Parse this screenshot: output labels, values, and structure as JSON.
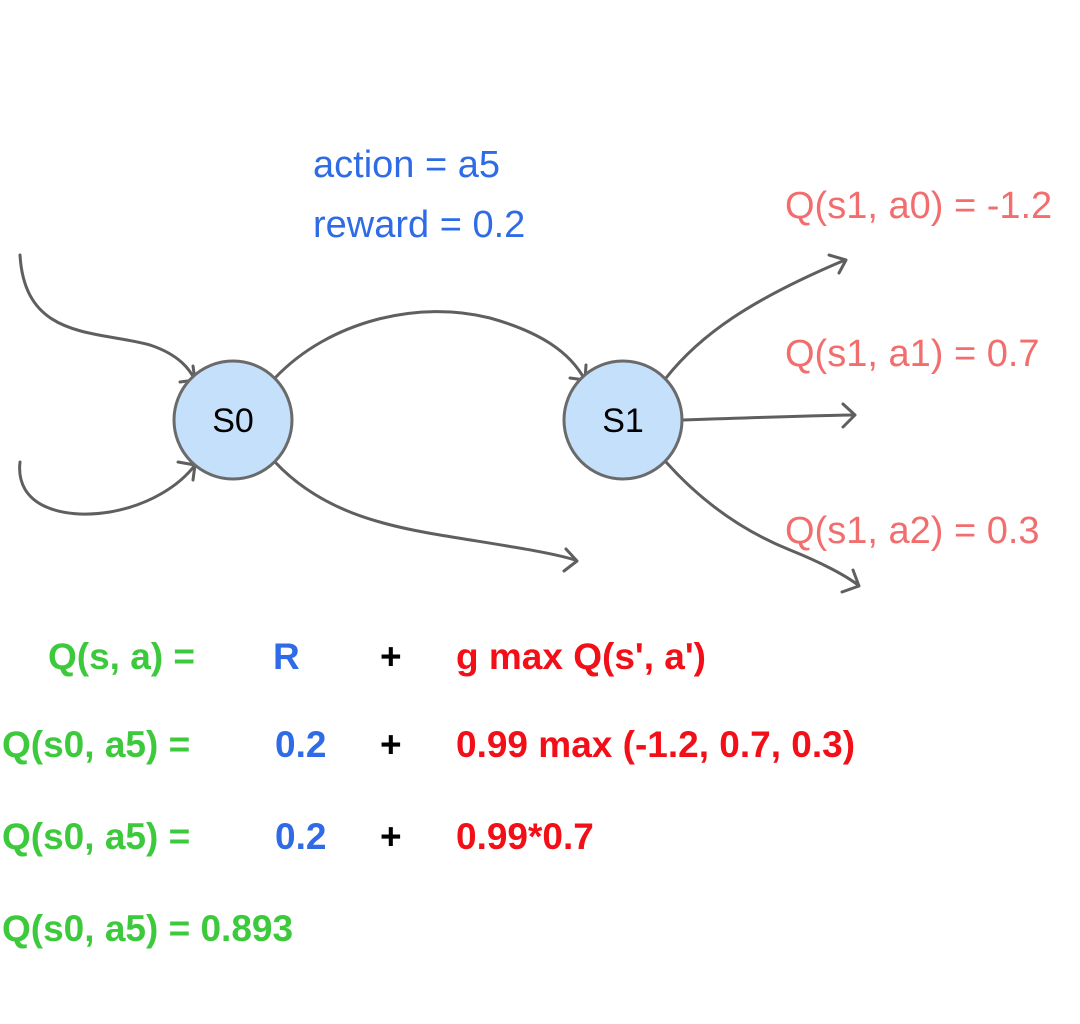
{
  "transition": {
    "action_text": "action = a5",
    "reward_text": "reward = 0.2"
  },
  "states": {
    "s0": "S0",
    "s1": "S1"
  },
  "next_q_values": [
    {
      "text": "Q(s1, a0) = -1.2"
    },
    {
      "text": "Q(s1, a1) = 0.7"
    },
    {
      "text": "Q(s1, a2) = 0.3"
    }
  ],
  "equations": {
    "general": {
      "lhs": "Q(s, a) =",
      "reward": "R",
      "plus": "+",
      "future": "g max Q(s', a')"
    },
    "substituted": {
      "lhs": "Q(s0, a5) =",
      "reward": "0.2",
      "plus": "+",
      "future": "0.99 max (-1.2, 0.7, 0.3)"
    },
    "reduced": {
      "lhs": "Q(s0, a5) =",
      "reward": "0.2",
      "plus": "+",
      "future": "0.99*0.7"
    },
    "result": "Q(s0, a5) = 0.893"
  },
  "colors": {
    "node_fill": "#c4e0fa",
    "edge": "#5f5f5f",
    "transition_text": "#2f6be6",
    "q_values": "#f26d6d",
    "equation_lhs": "#3cc93c",
    "equation_reward": "#2f6be6",
    "equation_future": "#f20f17"
  }
}
